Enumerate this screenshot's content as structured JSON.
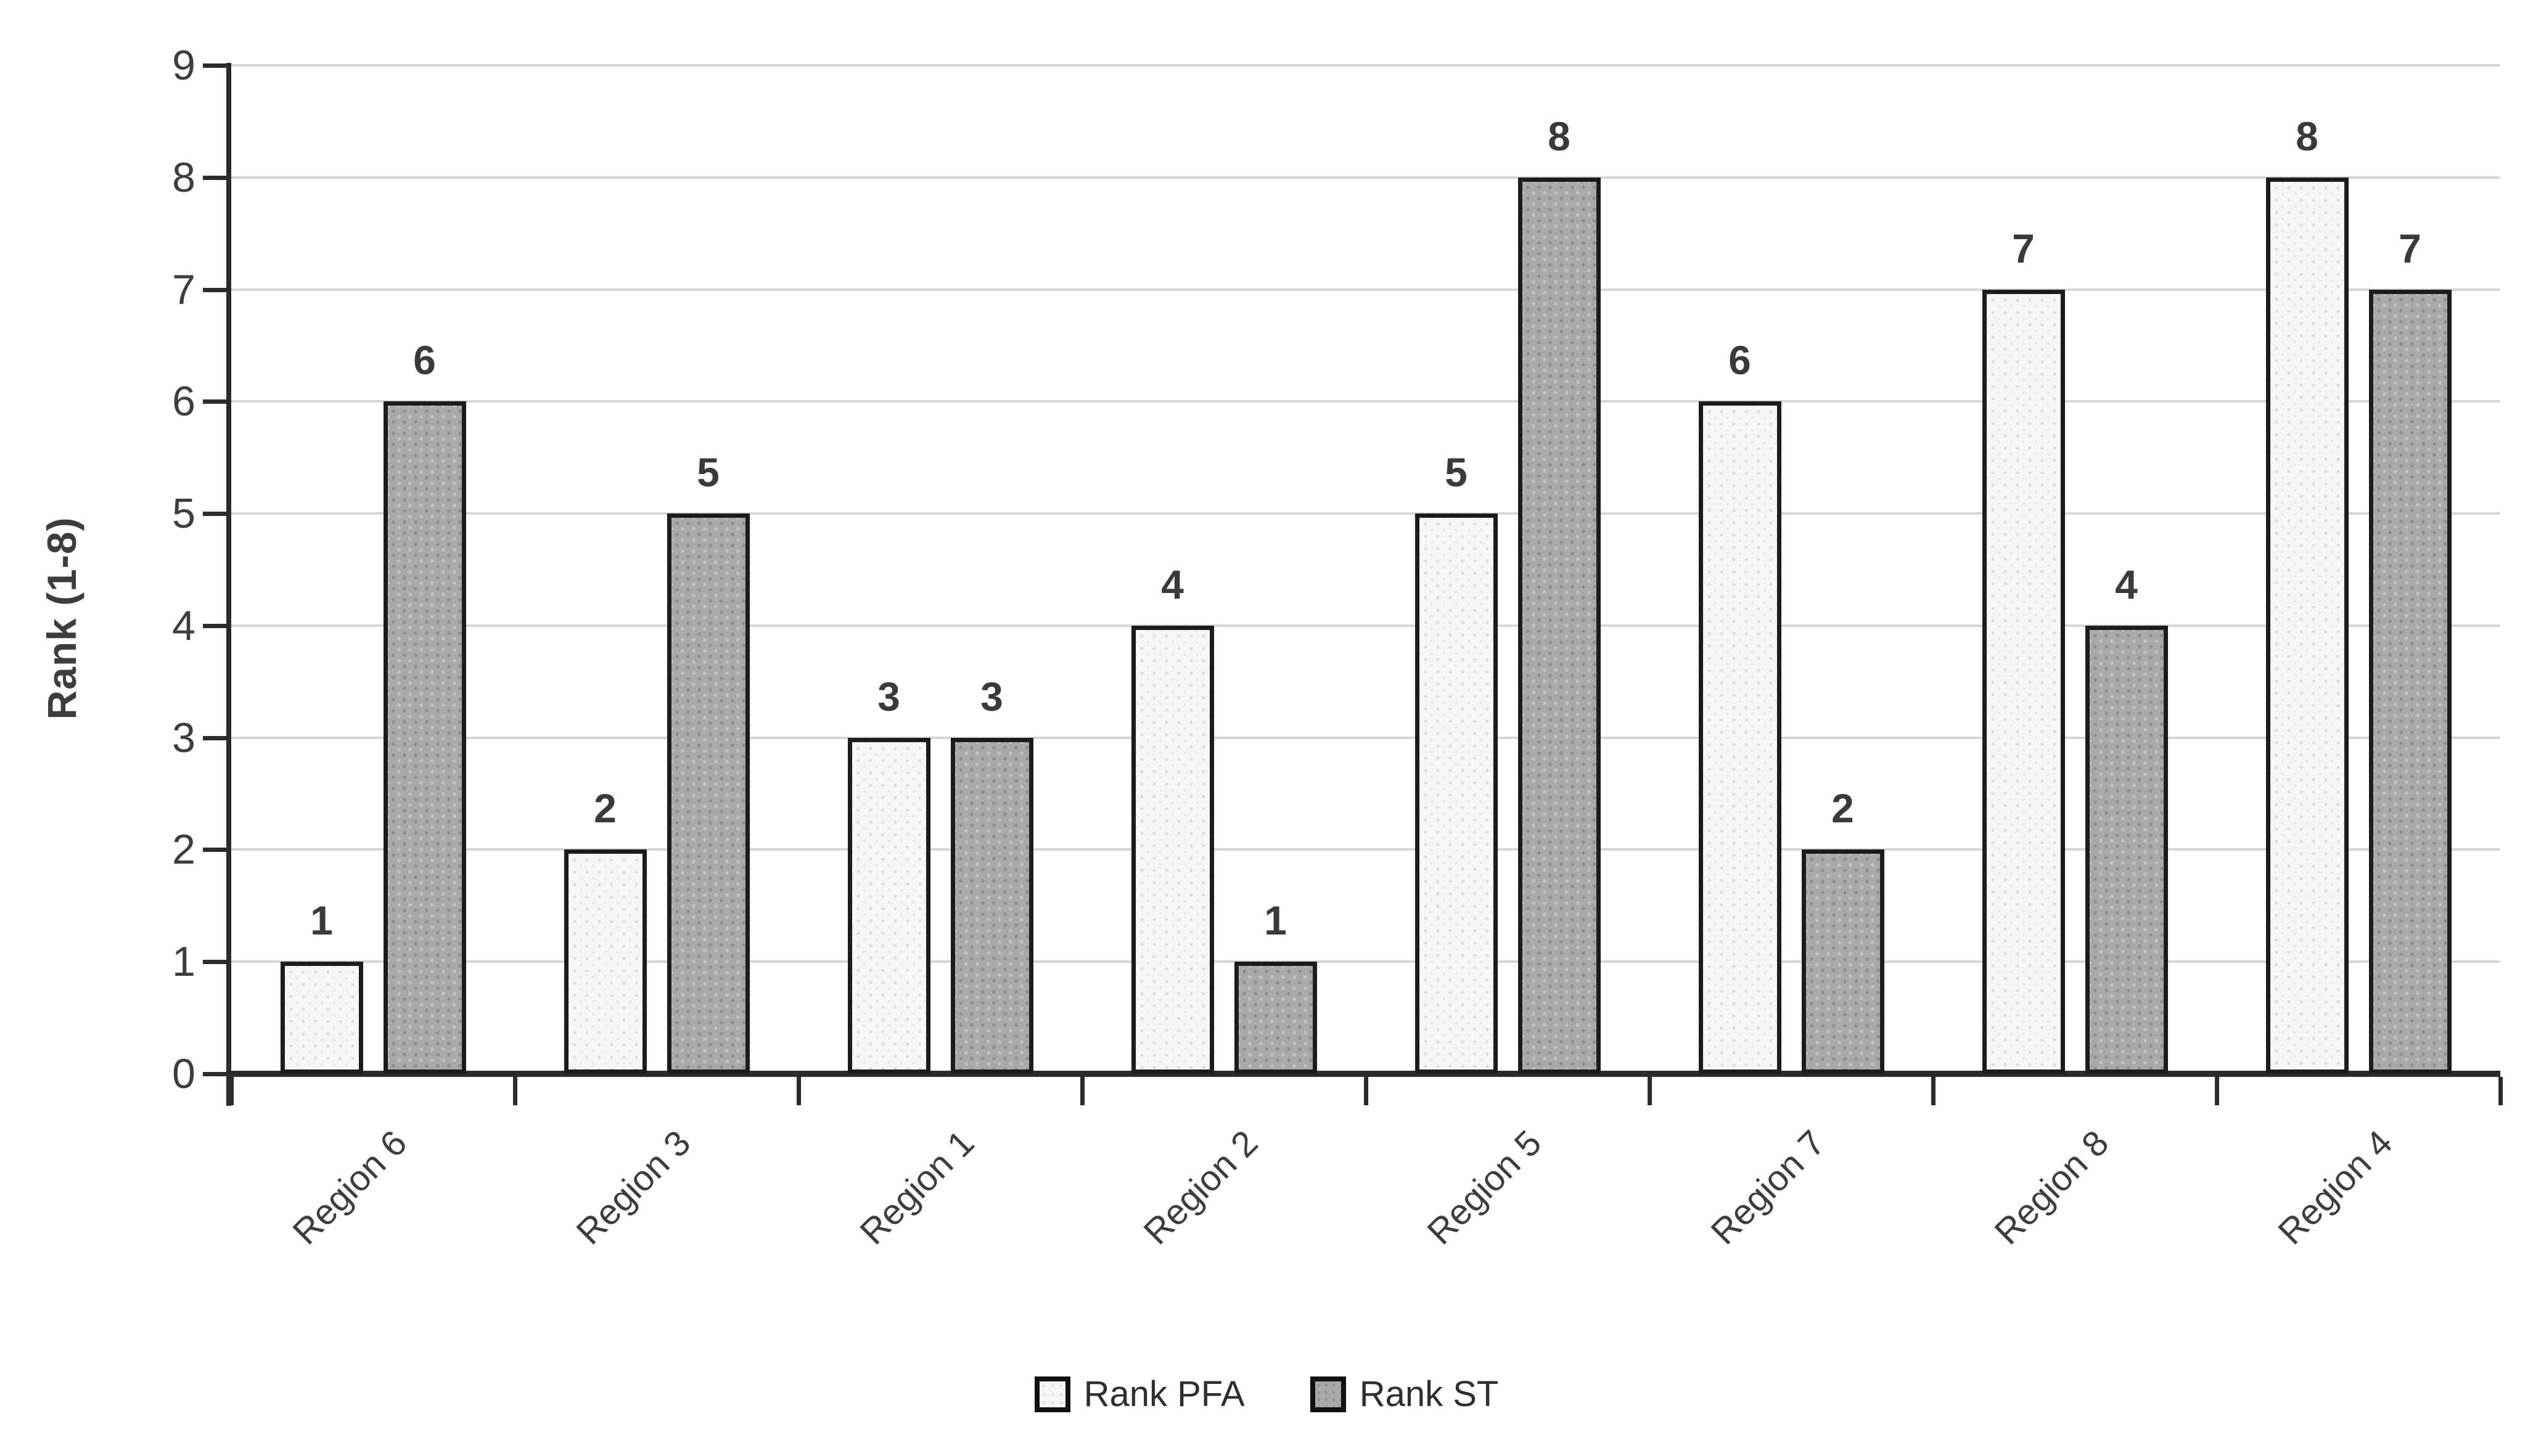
{
  "chart_data": {
    "type": "bar",
    "categories": [
      "Region 6",
      "Region 3",
      "Region 1",
      "Region 2",
      "Region 5",
      "Region 7",
      "Region 8",
      "Region 4"
    ],
    "series": [
      {
        "name": "Rank PFA",
        "values": [
          1,
          2,
          3,
          4,
          5,
          6,
          7,
          8
        ]
      },
      {
        "name": "Rank ST",
        "values": [
          6,
          5,
          3,
          1,
          8,
          2,
          4,
          7
        ]
      }
    ],
    "title": "",
    "xlabel": "",
    "ylabel": "Rank (1-8)",
    "yticks": [
      0,
      1,
      2,
      3,
      4,
      5,
      6,
      7,
      8,
      9
    ],
    "ylim": [
      0,
      9
    ],
    "grid": true,
    "data_labels": true,
    "legend_position": "bottom",
    "colors": {
      "pfa_fill": "#f6f6f6",
      "st_fill": "#a9a9a9",
      "bar_border": "#1c1c1c",
      "gridline": "#d6d6d6",
      "axis": "#2b2b2b",
      "text": "#3d3d3d"
    }
  }
}
